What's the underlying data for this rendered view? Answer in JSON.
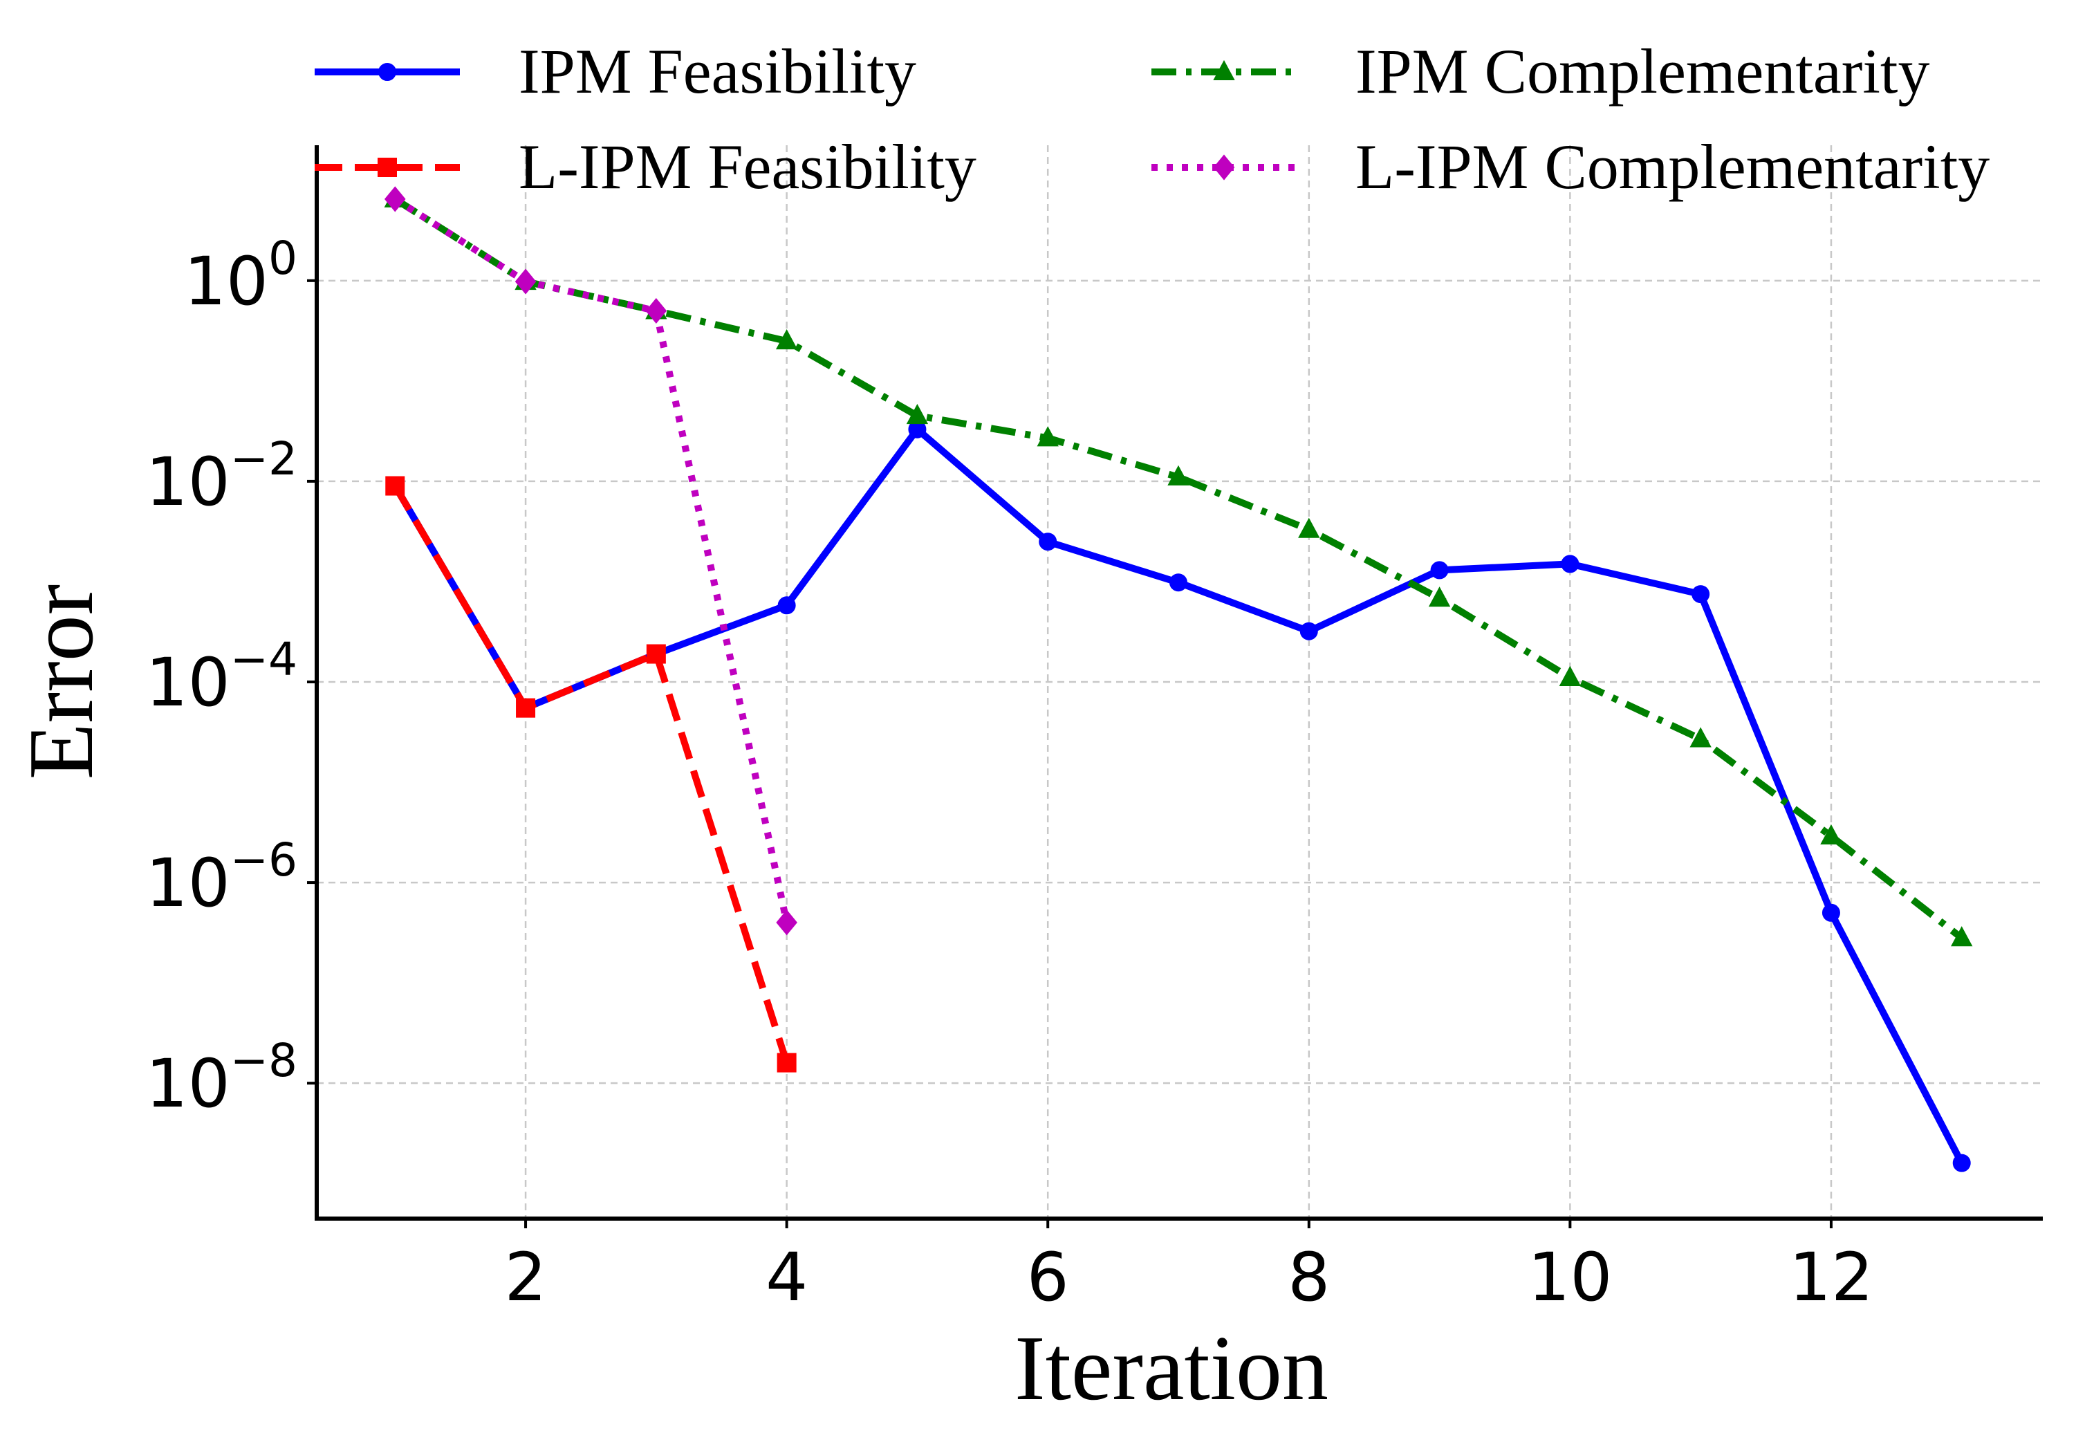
{
  "chart_data": {
    "type": "line",
    "title": "",
    "xlabel": "Iteration",
    "ylabel": "Error",
    "y_scale": "log",
    "xlim": [
      0.4,
      13.6
    ],
    "ylim_exponent": [
      -9.35,
      1.35
    ],
    "xticks": [
      2,
      4,
      6,
      8,
      10,
      12
    ],
    "xtick_labels": [
      "2",
      "4",
      "6",
      "8",
      "10",
      "12"
    ],
    "yticks": [
      1.0,
      0.01,
      0.0001,
      1e-06,
      1e-08
    ],
    "ytick_labels": [
      {
        "base": "10",
        "exp": "0"
      },
      {
        "base": "10",
        "exp": "−2"
      },
      {
        "base": "10",
        "exp": "−4"
      },
      {
        "base": "10",
        "exp": "−6"
      },
      {
        "base": "10",
        "exp": "−8"
      }
    ],
    "grid": true,
    "legend_position": "top, above plot, 2 columns",
    "series": [
      {
        "name": "IPM Feasibility",
        "color": "#0000ff",
        "linestyle": "solid",
        "marker": "circle",
        "x": [
          1,
          2,
          3,
          4,
          5,
          6,
          7,
          8,
          9,
          10,
          11,
          12,
          13
        ],
        "y": [
          0.009,
          5.5e-05,
          0.00019,
          0.00058,
          0.033,
          0.0025,
          0.00098,
          0.00032,
          0.0013,
          0.0015,
          0.00075,
          5e-07,
          1.6e-09
        ]
      },
      {
        "name": "IPM Complementarity",
        "color": "#008000",
        "linestyle": "dashdot",
        "marker": "triangle",
        "x": [
          1,
          2,
          3,
          4,
          5,
          6,
          7,
          8,
          9,
          10,
          11,
          12,
          13
        ],
        "y": [
          6.5,
          0.98,
          0.5,
          0.25,
          0.045,
          0.027,
          0.011,
          0.0033,
          0.00068,
          0.00011,
          2.7e-05,
          2.9e-06,
          2.8e-07
        ]
      },
      {
        "name": "L-IPM Feasibility",
        "color": "#ff0000",
        "linestyle": "dashed",
        "marker": "square",
        "x": [
          1,
          2,
          3,
          4
        ],
        "y": [
          0.009,
          5.5e-05,
          0.00019,
          1.6e-08
        ]
      },
      {
        "name": "L-IPM Complementarity",
        "color": "#bf00bf",
        "linestyle": "dotted",
        "marker": "diamond",
        "x": [
          1,
          2,
          3,
          4
        ],
        "y": [
          6.5,
          0.98,
          0.5,
          4e-07
        ]
      }
    ]
  }
}
